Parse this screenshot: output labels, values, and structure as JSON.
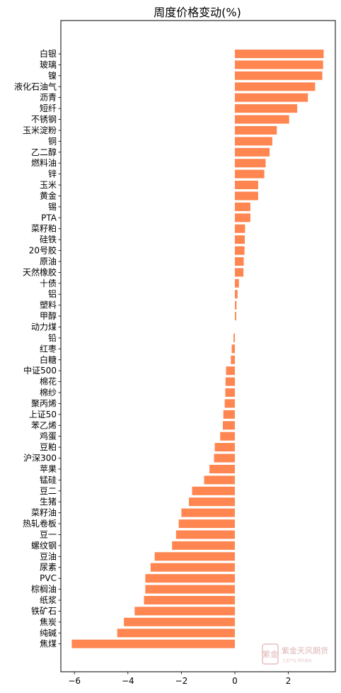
{
  "chart_data": {
    "type": "bar",
    "orientation": "horizontal",
    "title": "周度价格变动(%)",
    "xlabel": "",
    "ylabel": "",
    "xlim": [
      -6.8,
      3.9
    ],
    "xticks": [
      -6,
      -4,
      -2,
      0,
      2
    ],
    "bar_color": "#FF8650",
    "grid": false,
    "categories": [
      "白银",
      "玻璃",
      "镍",
      "液化石油气",
      "沥青",
      "短纤",
      "不锈钢",
      "玉米淀粉",
      "铜",
      "乙二醇",
      "燃料油",
      "锌",
      "玉米",
      "黄金",
      "锡",
      "PTA",
      "菜籽粕",
      "硅铁",
      "20号胶",
      "原油",
      "天然橡胶",
      "十债",
      "铝",
      "塑料",
      "甲醇",
      "动力煤",
      "铅",
      "红枣",
      "白糖",
      "中证500",
      "棉花",
      "棉纱",
      "聚丙烯",
      "上证50",
      "苯乙烯",
      "鸡蛋",
      "豆粕",
      "沪深300",
      "苹果",
      "锰硅",
      "豆二",
      "生猪",
      "菜籽油",
      "热轧卷板",
      "豆一",
      "螺纹钢",
      "豆油",
      "尿素",
      "PVC",
      "棕榈油",
      "纸浆",
      "铁矿石",
      "焦炭",
      "纯碱",
      "焦煤"
    ],
    "values": [
      3.32,
      3.3,
      3.27,
      3.0,
      2.73,
      2.33,
      2.03,
      1.57,
      1.4,
      1.3,
      1.15,
      1.1,
      0.87,
      0.87,
      0.58,
      0.58,
      0.38,
      0.37,
      0.36,
      0.33,
      0.32,
      0.15,
      0.1,
      0.06,
      0.05,
      0.0,
      -0.05,
      -0.12,
      -0.15,
      -0.33,
      -0.35,
      -0.36,
      -0.38,
      -0.43,
      -0.45,
      -0.55,
      -0.75,
      -0.78,
      -0.95,
      -1.15,
      -1.6,
      -1.72,
      -2.0,
      -2.1,
      -2.2,
      -2.35,
      -3.0,
      -3.15,
      -3.35,
      -3.35,
      -3.4,
      -3.75,
      -4.15,
      -4.4,
      -6.1
    ]
  },
  "watermark": {
    "logo_chars": "紫金",
    "text": "紫金天风期货",
    "subtext": "立足产业 研究驱动"
  }
}
